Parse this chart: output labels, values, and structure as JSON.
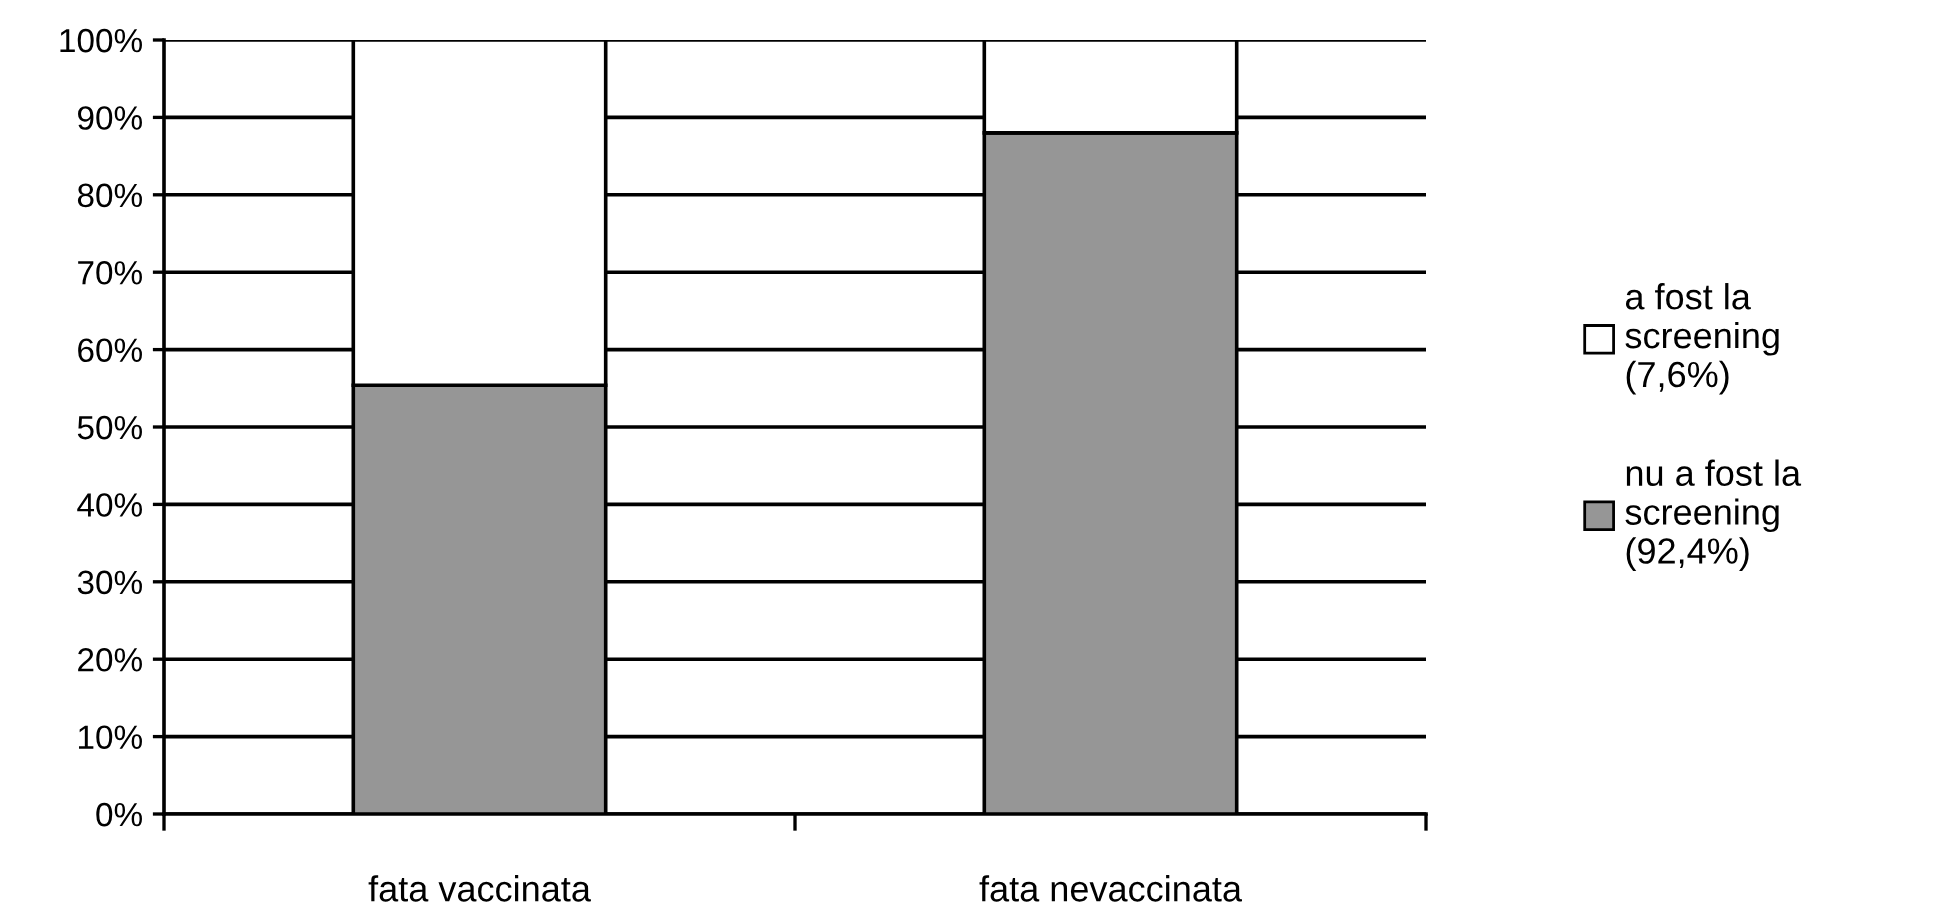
{
  "chart_data": {
    "type": "bar",
    "stacked": true,
    "categories": [
      "fata vaccinata",
      "fata nevaccinata"
    ],
    "series": [
      {
        "name": "nu a fost la\nscreening\n(92,4%)",
        "color": "#969696",
        "values": [
          55.4,
          88
        ]
      },
      {
        "name": "a fost la\nscreening\n(7,6%)",
        "color": "#ffffff",
        "values": [
          44.6,
          12
        ]
      }
    ],
    "ylim": [
      0,
      100
    ],
    "yticks": [
      {
        "value": 0,
        "label": "0%"
      },
      {
        "value": 10,
        "label": "10%"
      },
      {
        "value": 20,
        "label": "20%"
      },
      {
        "value": 30,
        "label": "30%"
      },
      {
        "value": 40,
        "label": "40%"
      },
      {
        "value": 50,
        "label": "50%"
      },
      {
        "value": 60,
        "label": "60%"
      },
      {
        "value": 70,
        "label": "70%"
      },
      {
        "value": 80,
        "label": "80%"
      },
      {
        "value": 90,
        "label": "90%"
      },
      {
        "value": 100,
        "label": "100%"
      }
    ],
    "grid": "y",
    "legend": "right"
  }
}
